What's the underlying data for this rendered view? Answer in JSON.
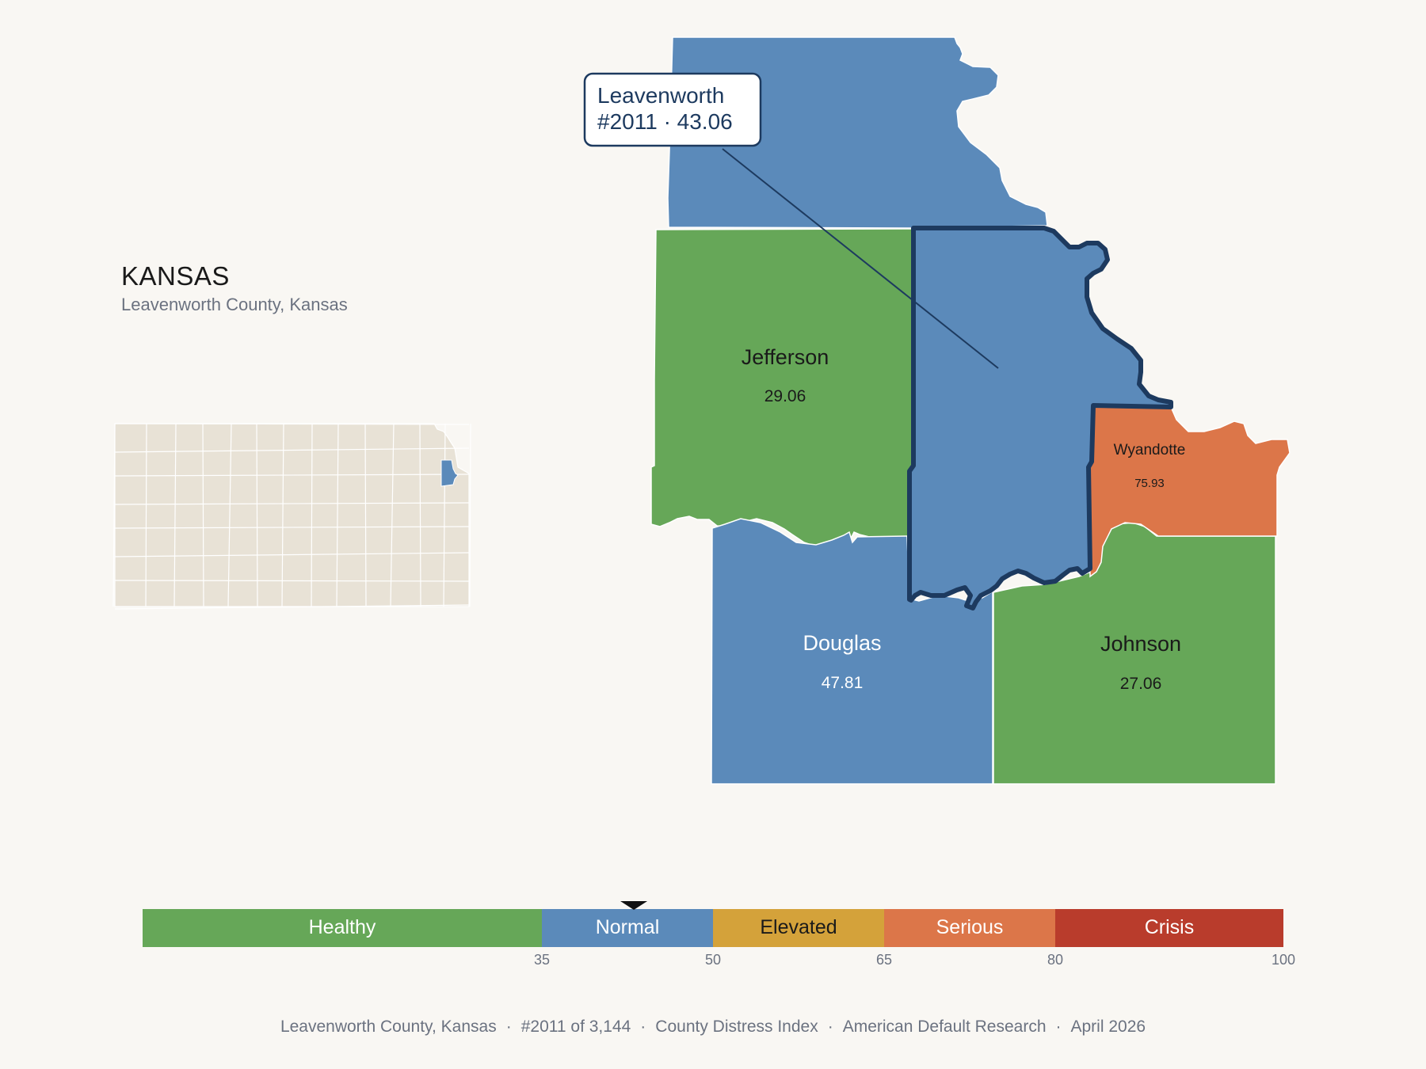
{
  "header": {
    "state": "KANSAS",
    "subtitle": "Leavenworth County, Kansas"
  },
  "callout": {
    "line1": "Leavenworth",
    "line2": "#2011 · 43.06"
  },
  "counties": [
    {
      "name": "Leavenworth",
      "value": 43.06,
      "category": "Normal",
      "highlighted": true
    },
    {
      "name": "Jefferson",
      "value_label": "29.06",
      "value": 29.06,
      "category": "Healthy"
    },
    {
      "name": "Douglas",
      "value_label": "47.81",
      "value": 47.81,
      "category": "Normal"
    },
    {
      "name": "Johnson",
      "value_label": "27.06",
      "value": 27.06,
      "category": "Healthy"
    },
    {
      "name": "Wyandotte",
      "value_label": "75.93",
      "value": 75.93,
      "category": "Serious"
    }
  ],
  "colors": {
    "healthy": "#66a758",
    "normal": "#5b8aba",
    "elevated": "#d4a23a",
    "serious": "#dc7649",
    "crisis": "#b93c2c",
    "outline": "#1d3a5f",
    "inset_fill": "#e8e2d6",
    "background": "#f9f7f3"
  },
  "legend": {
    "marker_value": 43.06,
    "segments": [
      {
        "label": "Healthy",
        "from": 0,
        "to": 35,
        "color": "#66a758"
      },
      {
        "label": "Normal",
        "from": 35,
        "to": 50,
        "color": "#5b8aba"
      },
      {
        "label": "Elevated",
        "from": 50,
        "to": 65,
        "color": "#d4a23a"
      },
      {
        "label": "Serious",
        "from": 65,
        "to": 80,
        "color": "#dc7649"
      },
      {
        "label": "Crisis",
        "from": 80,
        "to": 100,
        "color": "#b93c2c"
      }
    ],
    "ticks": [
      "35",
      "50",
      "65",
      "80",
      "100"
    ]
  },
  "footer": {
    "county": "Leavenworth County, Kansas",
    "rank": "#2011 of 3,144",
    "index": "County Distress Index",
    "source": "American Default Research",
    "date": "April 2026"
  }
}
